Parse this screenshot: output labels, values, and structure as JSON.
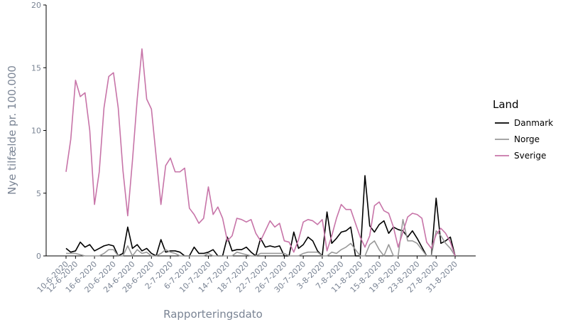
{
  "chart_data": {
    "type": "line",
    "x_label": "Rapporteringsdato",
    "y_label": "Nye tilfælde pr. 100.000",
    "legend_title": "Land",
    "legend_position": "right",
    "categories": [
      "10-6-2020",
      null,
      "12-6-2020",
      null,
      null,
      null,
      "16-6-2020",
      null,
      null,
      null,
      "20-6-2020",
      null,
      null,
      null,
      "24-6-2020",
      null,
      null,
      null,
      "28-6-2020",
      null,
      null,
      null,
      "2-7-2020",
      null,
      null,
      null,
      "6-7-2020",
      null,
      null,
      null,
      "10-7-2020",
      null,
      null,
      null,
      "14-7-2020",
      null,
      null,
      null,
      "18-7-2020",
      null,
      null,
      null,
      "22-7-2020",
      null,
      null,
      null,
      "26-7-2020",
      null,
      null,
      null,
      "30-7-2020",
      null,
      null,
      null,
      "3-8-2020",
      null,
      null,
      null,
      "7-8-2020",
      null,
      null,
      null,
      "11-8-2020",
      null,
      null,
      null,
      "15-8-2020",
      null,
      null,
      null,
      "19-8-2020",
      null,
      null,
      null,
      "23-8-2020",
      null,
      null,
      null,
      "27-8-2020",
      null,
      null,
      null,
      "31-8-2020"
    ],
    "series": [
      {
        "name": "Danmark",
        "color": "#000000",
        "values": [
          0.6,
          0.3,
          0.4,
          1.1,
          0.7,
          0.9,
          0.4,
          0.6,
          0.8,
          0.9,
          0.8,
          0,
          0.2,
          2.3,
          0.6,
          0.9,
          0.4,
          0.6,
          0.2,
          0,
          1.3,
          0.3,
          0.4,
          0.4,
          0.3,
          0,
          0,
          0.7,
          0.2,
          0.2,
          0.3,
          0.5,
          0,
          0,
          1.5,
          0.4,
          0.5,
          0.5,
          0.7,
          0.3,
          0,
          1.4,
          0.7,
          0.8,
          0.7,
          0.8,
          0,
          0,
          1.9,
          0.6,
          0.9,
          1.5,
          1.2,
          0.4,
          0,
          3.5,
          1.0,
          1.4,
          1.9,
          2.0,
          2.3,
          0,
          0,
          6.4,
          2.4,
          1.9,
          2.5,
          2.8,
          1.8,
          2.3,
          2.1,
          2.0,
          1.5,
          2.0,
          1.4,
          0.7,
          0,
          0,
          4.6,
          1.0,
          1.2,
          1.5,
          0
        ]
      },
      {
        "name": "Norge",
        "color": "#999999",
        "values": [
          0.2,
          0.2,
          0.2,
          0.1,
          0,
          0,
          0,
          0,
          0.2,
          0.5,
          0.5,
          0,
          0,
          0.8,
          0,
          0.5,
          0.2,
          0.3,
          0,
          0,
          0.2,
          0.5,
          0.3,
          0.2,
          0,
          0,
          0,
          0,
          0,
          0,
          0.2,
          0,
          0,
          0,
          0,
          0,
          0.3,
          0.2,
          0.1,
          0,
          0,
          0.2,
          0.2,
          0.2,
          0.2,
          0.2,
          0.2,
          0,
          0,
          0,
          0.2,
          0.3,
          0.3,
          0.3,
          0,
          0,
          0.3,
          0.2,
          0.5,
          0.7,
          1.0,
          0.5,
          0,
          0,
          0.9,
          1.2,
          0.5,
          0,
          0.9,
          0,
          0,
          2.9,
          1.2,
          1.2,
          1.0,
          0.5,
          0,
          0,
          2.0,
          1.6,
          1.0,
          0.6,
          0
        ]
      },
      {
        "name": "Sverige",
        "color": "#c774a8",
        "values": [
          6.7,
          9.3,
          14.0,
          12.7,
          13.0,
          10.0,
          4.1,
          6.7,
          11.8,
          14.3,
          14.6,
          11.8,
          6.8,
          3.2,
          7.6,
          12.5,
          16.5,
          12.5,
          11.7,
          7.9,
          4.1,
          7.2,
          7.8,
          6.7,
          6.7,
          7.0,
          3.8,
          3.3,
          2.6,
          3.0,
          5.5,
          3.3,
          3.9,
          3.0,
          1.2,
          1.6,
          3.0,
          2.9,
          2.7,
          2.9,
          1.8,
          1.2,
          2.0,
          2.8,
          2.3,
          2.6,
          1.2,
          1.1,
          0.3,
          1.3,
          2.7,
          2.9,
          2.8,
          2.5,
          2.9,
          0.4,
          1.6,
          3.0,
          4.1,
          3.7,
          3.7,
          2.6,
          1.5,
          0.7,
          1.6,
          4.0,
          4.3,
          3.6,
          3.4,
          2.3,
          0.7,
          1.9,
          3.1,
          3.4,
          3.3,
          3.0,
          1.1,
          0.6,
          1.7,
          2.2,
          1.8,
          1.1,
          0
        ]
      }
    ],
    "ylim": [
      0,
      20
    ],
    "yticks": [
      0,
      5,
      10,
      15,
      20
    ],
    "grid": false
  }
}
